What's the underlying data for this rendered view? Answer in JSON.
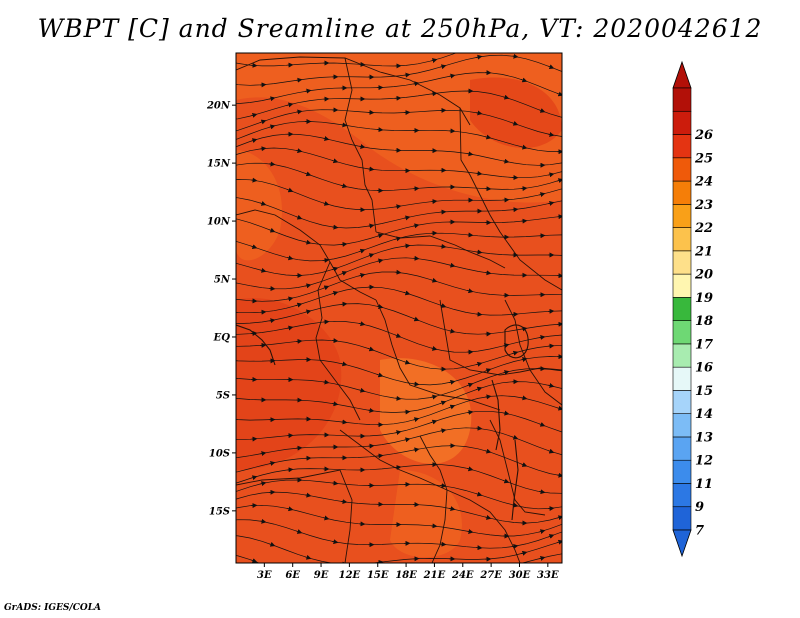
{
  "title": "WBPT [C] and Sreamline at 250hPa, VT: 2020042612",
  "credit": "GrADS: IGES/COLA",
  "map": {
    "lat_labels": [
      "20N",
      "15N",
      "10N",
      "5N",
      "EQ",
      "5S",
      "10S",
      "15S"
    ],
    "lat_values": [
      20,
      15,
      10,
      5,
      0,
      -5,
      -10,
      -15
    ],
    "lon_labels": [
      "3E",
      "6E",
      "9E",
      "12E",
      "15E",
      "18E",
      "21E",
      "24E",
      "27E",
      "30E",
      "33E"
    ],
    "lon_values": [
      3,
      6,
      9,
      12,
      15,
      18,
      21,
      24,
      27,
      30,
      33
    ],
    "lat_range": [
      -19.5,
      24.5
    ],
    "lon_range": [
      0,
      34.5
    ],
    "fill_colors": [
      "#e8501e",
      "#f06420",
      "#e24018",
      "#f57a28"
    ]
  },
  "colorbar": {
    "labels": [
      "7",
      "9",
      "11",
      "12",
      "13",
      "14",
      "15",
      "16",
      "17",
      "18",
      "19",
      "20",
      "21",
      "22",
      "23",
      "24",
      "25",
      "26"
    ],
    "colors": [
      "#1f64d8",
      "#2c78e4",
      "#3c8cec",
      "#5aa4f2",
      "#7cbcf6",
      "#a6d4fa",
      "#e6f8f8",
      "#a8ecb0",
      "#6ed874",
      "#38b83c",
      "#fff6b0",
      "#fee08a",
      "#fcc24c",
      "#f9a018",
      "#f57e08",
      "#ef5a0a",
      "#e43412",
      "#cc1c0c",
      "#b21008"
    ],
    "low_color": "#1f64d8",
    "high_color": "#b21008"
  }
}
